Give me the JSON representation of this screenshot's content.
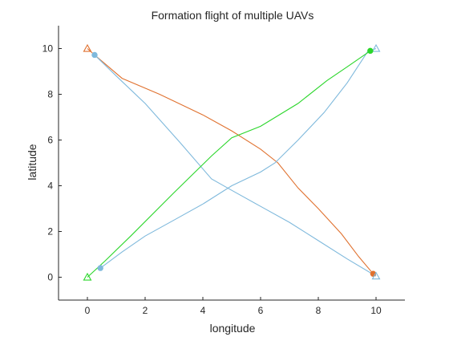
{
  "chart_data": {
    "type": "line",
    "title": "Formation flight of multiple UAVs",
    "xlabel": "longitude",
    "ylabel": "latitude",
    "xlim": [
      -1,
      11
    ],
    "ylim": [
      -1,
      11
    ],
    "xticks": [
      0,
      2,
      4,
      6,
      8,
      10
    ],
    "yticks": [
      0,
      2,
      4,
      6,
      8,
      10
    ],
    "grid": false,
    "box": "left-bottom axes only",
    "series": [
      {
        "color": "#E07230",
        "start_marker": "triangle",
        "end_marker": "filled-circle",
        "points": [
          [
            0,
            10
          ],
          [
            0.25,
            9.72
          ],
          [
            1.2,
            8.7
          ],
          [
            2.5,
            8.0
          ],
          [
            4.0,
            7.1
          ],
          [
            5.0,
            6.4
          ],
          [
            6.0,
            5.6
          ],
          [
            6.6,
            5.0
          ],
          [
            7.3,
            3.9
          ],
          [
            8.0,
            3.0
          ],
          [
            8.8,
            1.9
          ],
          [
            9.4,
            0.9
          ],
          [
            9.9,
            0.15
          ]
        ]
      },
      {
        "color": "#7FB9DC",
        "start_marker": "triangle",
        "end_marker": "filled-circle",
        "points": [
          [
            10,
            10
          ],
          [
            9.7,
            9.85
          ],
          [
            9.0,
            8.5
          ],
          [
            8.2,
            7.2
          ],
          [
            7.3,
            6.0
          ],
          [
            6.5,
            5.0
          ],
          [
            6.0,
            4.6
          ],
          [
            5.0,
            4.0
          ],
          [
            4.0,
            3.2
          ],
          [
            3.0,
            2.5
          ],
          [
            2.0,
            1.8
          ],
          [
            1.2,
            1.1
          ],
          [
            0.45,
            0.4
          ]
        ]
      },
      {
        "color": "#7FB9DC",
        "start_marker": "filled-circle",
        "end_marker": "triangle",
        "points": [
          [
            0.25,
            9.72
          ],
          [
            1.0,
            8.8
          ],
          [
            2.0,
            7.6
          ],
          [
            3.2,
            5.9
          ],
          [
            4.3,
            4.3
          ],
          [
            5.0,
            3.8
          ],
          [
            6.0,
            3.1
          ],
          [
            7.0,
            2.4
          ],
          [
            8.0,
            1.6
          ],
          [
            9.0,
            0.8
          ],
          [
            10,
            0.05
          ]
        ]
      },
      {
        "color": "#2BD62B",
        "start_marker": "triangle",
        "end_marker": "filled-circle",
        "points": [
          [
            0,
            0
          ],
          [
            0.6,
            0.7
          ],
          [
            1.5,
            1.8
          ],
          [
            3.0,
            3.7
          ],
          [
            4.3,
            5.3
          ],
          [
            5.0,
            6.1
          ],
          [
            6.0,
            6.6
          ],
          [
            7.3,
            7.6
          ],
          [
            8.3,
            8.6
          ],
          [
            9.0,
            9.2
          ],
          [
            9.8,
            9.9
          ]
        ]
      }
    ]
  }
}
